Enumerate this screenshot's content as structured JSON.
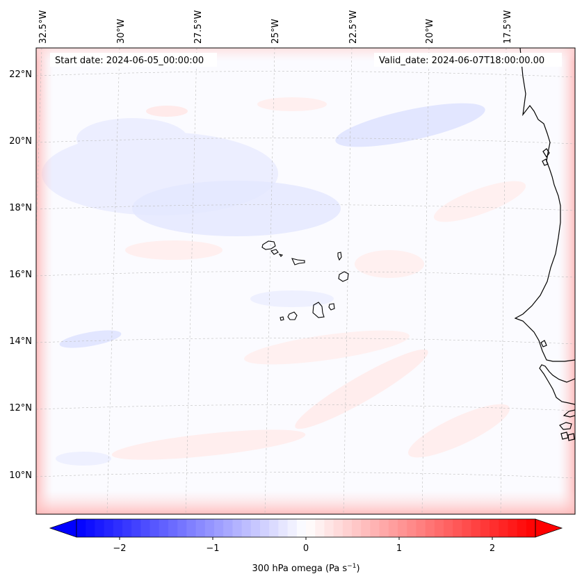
{
  "header": {
    "start_date": "Start date: 2024-06-05_00:00:00",
    "valid_date": "Valid_date: 2024-06-07T18:00:00.00"
  },
  "map": {
    "lon_labels": [
      "32.5°W",
      "30°W",
      "27.5°W",
      "25°W",
      "22.5°W",
      "20°W",
      "17.5°W"
    ],
    "lat_labels": [
      "22°N",
      "20°N",
      "18°N",
      "16°N",
      "14°N",
      "12°N",
      "10°N"
    ],
    "features": [
      "Cape Verde Islands",
      "West African coastline"
    ]
  },
  "colorbar": {
    "label": "300 hPa omega (Pa s",
    "label_sup": "−1",
    "label_close": ")",
    "ticks": [
      "−2",
      "−1",
      "0",
      "1",
      "2"
    ],
    "colors": {
      "negative": "#0000ff",
      "zero": "#ffffff",
      "positive": "#ff0000"
    }
  }
}
